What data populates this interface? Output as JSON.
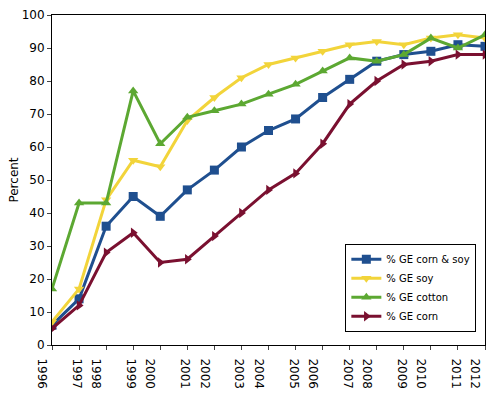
{
  "chart_data": {
    "type": "line",
    "y_label": "Percent",
    "x": [
      1996,
      1997,
      1998,
      1999,
      2000,
      2001,
      2002,
      2003,
      2004,
      2005,
      2006,
      2007,
      2008,
      2009,
      2010,
      2011,
      2012
    ],
    "series": [
      {
        "name": "% GE corn & soy",
        "color": "#1f4f8f",
        "marker": "square",
        "values": [
          6,
          14,
          36,
          45,
          39,
          47,
          53,
          60,
          65,
          68.5,
          75,
          80.5,
          86,
          88,
          89,
          91,
          90.5
        ]
      },
      {
        "name": "% GE soy",
        "color": "#f2d43a",
        "marker": "triangle-down",
        "values": [
          7,
          17,
          44,
          56,
          54,
          68,
          75,
          81,
          85,
          87,
          89,
          91,
          92,
          91,
          93,
          94,
          93
        ]
      },
      {
        "name": "% GE cotton",
        "color": "#5ca832",
        "marker": "triangle-up",
        "values": [
          17,
          43,
          43,
          77,
          61,
          69,
          71,
          73,
          76,
          79,
          83,
          87,
          86,
          88,
          93,
          90,
          94
        ]
      },
      {
        "name": "% GE corn",
        "color": "#7a1030",
        "marker": "triangle-right",
        "values": [
          5,
          12,
          28,
          34,
          25,
          26,
          33,
          40,
          47,
          52,
          61,
          73,
          80,
          85,
          86,
          88,
          88
        ]
      }
    ],
    "xlim": [
      1996,
      2012
    ],
    "xticks": [
      1996,
      1997,
      1998,
      1999,
      2000,
      2001,
      2002,
      2003,
      2004,
      2005,
      2006,
      2007,
      2008,
      2009,
      2010,
      2011,
      2012
    ],
    "ylim": [
      0,
      100
    ],
    "yticks": [
      0,
      10,
      20,
      30,
      40,
      50,
      60,
      70,
      80,
      90,
      100
    ],
    "grid": false,
    "legend": "bottom-right"
  }
}
